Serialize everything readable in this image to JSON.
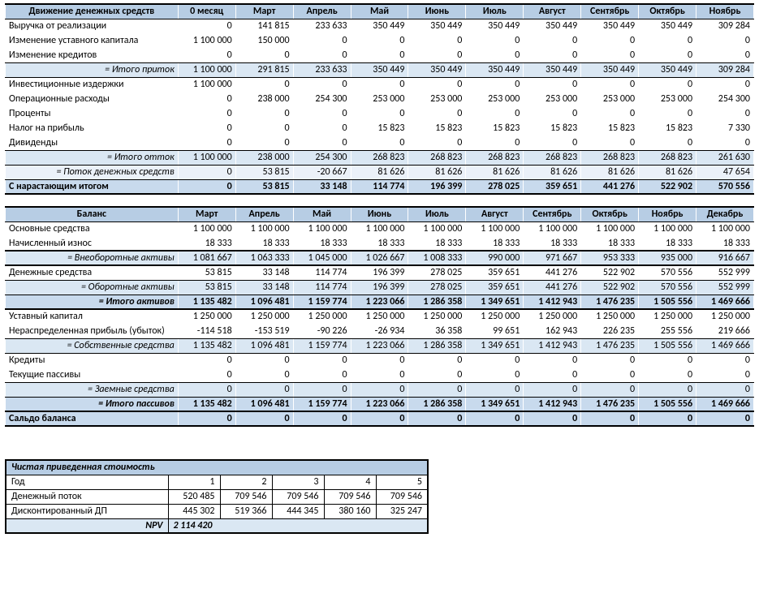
{
  "colors": {
    "header_fill": "#b7cde4",
    "sub1_fill": "#c8daed",
    "sub2_fill": "#dae7f3",
    "sub3_fill": "#ebf1f9",
    "border": "#000000",
    "text": "#000000",
    "background": "#ffffff"
  },
  "typography": {
    "font_family": "Calibri, Arial, sans-serif",
    "base_size_pt": 9,
    "header_weight": "bold"
  },
  "cashflow": {
    "title": "Движение денежных средств",
    "first_col_header": "0 месяц",
    "months": [
      "Март",
      "Апрель",
      "Май",
      "Июнь",
      "Июль",
      "Август",
      "Сентябрь",
      "Октябрь",
      "Ноябрь"
    ],
    "rows": [
      {
        "k": "r1",
        "label": "Выручка от реализации",
        "v": [
          "0",
          "141 815",
          "233 633",
          "350 449",
          "350 449",
          "350 449",
          "350 449",
          "350 449",
          "350 449",
          "309 284"
        ],
        "style": ""
      },
      {
        "k": "r2",
        "label": "Изменение уставного капитала",
        "v": [
          "1 100 000",
          "150 000",
          "0",
          "0",
          "0",
          "0",
          "0",
          "0",
          "0",
          "0"
        ],
        "style": ""
      },
      {
        "k": "r3",
        "label": "Изменение кредитов",
        "v": [
          "0",
          "0",
          "0",
          "0",
          "0",
          "0",
          "0",
          "0",
          "0",
          "0"
        ],
        "style": "thin-bot"
      },
      {
        "k": "r4",
        "label": "= Итого приток",
        "v": [
          "1 100 000",
          "291 815",
          "233 633",
          "350 449",
          "350 449",
          "350 449",
          "350 449",
          "350 449",
          "350 449",
          "309 284"
        ],
        "style": "italic-sub blue-2 thin-top thin-bot"
      },
      {
        "k": "r5",
        "label": "Инвестиционные издержки",
        "v": [
          "1 100 000",
          "0",
          "0",
          "0",
          "0",
          "0",
          "0",
          "0",
          "0",
          "0"
        ],
        "style": ""
      },
      {
        "k": "r6",
        "label": "Операционные расходы",
        "v": [
          "0",
          "238 000",
          "254 300",
          "253 000",
          "253 000",
          "253 000",
          "253 000",
          "253 000",
          "253 000",
          "254 300"
        ],
        "style": ""
      },
      {
        "k": "r7",
        "label": "Проценты",
        "v": [
          "0",
          "0",
          "0",
          "0",
          "0",
          "0",
          "0",
          "0",
          "0",
          "0"
        ],
        "style": ""
      },
      {
        "k": "r8",
        "label": "Налог на прибыль",
        "v": [
          "0",
          "0",
          "0",
          "15 823",
          "15 823",
          "15 823",
          "15 823",
          "15 823",
          "15 823",
          "7 330"
        ],
        "style": ""
      },
      {
        "k": "r9",
        "label": "Дивиденды",
        "v": [
          "0",
          "0",
          "0",
          "0",
          "0",
          "0",
          "0",
          "0",
          "0",
          "0"
        ],
        "style": "thin-bot"
      },
      {
        "k": "r10",
        "label": "= Итого отток",
        "v": [
          "1 100 000",
          "238 000",
          "254 300",
          "268 823",
          "268 823",
          "268 823",
          "268 823",
          "268 823",
          "268 823",
          "261 630"
        ],
        "style": "italic-sub blue-2 thin-top thin-bot"
      },
      {
        "k": "r11",
        "label": "= Поток денежных средств",
        "v": [
          "0",
          "53 815",
          "-20 667",
          "81 626",
          "81 626",
          "81 626",
          "81 626",
          "81 626",
          "81 626",
          "47 654"
        ],
        "style": "italic-sub blue-3 thin-top thin-bot"
      },
      {
        "k": "r12",
        "label": "С нарастающим итогом",
        "v": [
          "0",
          "53 815",
          "33 148",
          "114 774",
          "196 399",
          "278 025",
          "359 651",
          "441 276",
          "522 902",
          "570 556"
        ],
        "style": "bold-row blue-1 section-bot"
      }
    ]
  },
  "balance": {
    "title": "Баланс",
    "months": [
      "Март",
      "Апрель",
      "Май",
      "Июнь",
      "Июль",
      "Август",
      "Сентябрь",
      "Октябрь",
      "Ноябрь",
      "Декабрь"
    ],
    "rows": [
      {
        "k": "b1",
        "label": "Основные средства",
        "v": [
          "1 100 000",
          "1 100 000",
          "1 100 000",
          "1 100 000",
          "1 100 000",
          "1 100 000",
          "1 100 000",
          "1 100 000",
          "1 100 000",
          "1 100 000"
        ],
        "style": ""
      },
      {
        "k": "b2",
        "label": "Начисленный износ",
        "v": [
          "18 333",
          "18 333",
          "18 333",
          "18 333",
          "18 333",
          "18 333",
          "18 333",
          "18 333",
          "18 333",
          "18 333"
        ],
        "style": "thin-bot"
      },
      {
        "k": "b3",
        "label": "= Внеоборотные активы",
        "v": [
          "1 081 667",
          "1 063 333",
          "1 045 000",
          "1 026 667",
          "1 008 333",
          "990 000",
          "971 667",
          "953 333",
          "935 000",
          "916 667"
        ],
        "style": "italic-sub blue-2 section-top section-bot"
      },
      {
        "k": "b4",
        "label": "Денежные средства",
        "v": [
          "53 815",
          "33 148",
          "114 774",
          "196 399",
          "278 025",
          "359 651",
          "441 276",
          "522 902",
          "570 556",
          "552 999"
        ],
        "style": "thin-bot"
      },
      {
        "k": "b5",
        "label": "= Оборотные активы",
        "v": [
          "53 815",
          "33 148",
          "114 774",
          "196 399",
          "278 025",
          "359 651",
          "441 276",
          "522 902",
          "570 556",
          "552 999"
        ],
        "style": "italic-sub blue-2 thin-top thin-bot"
      },
      {
        "k": "b6",
        "label": "= Итого активов",
        "v": [
          "1 135 482",
          "1 096 481",
          "1 159 774",
          "1 223 066",
          "1 286 358",
          "1 349 651",
          "1 412 943",
          "1 476 235",
          "1 505 556",
          "1 469 666"
        ],
        "style": "italic-sub bold-row blue-1 thin-top section-bot"
      },
      {
        "k": "b7",
        "label": "Уставный капитал",
        "v": [
          "1 250 000",
          "1 250 000",
          "1 250 000",
          "1 250 000",
          "1 250 000",
          "1 250 000",
          "1 250 000",
          "1 250 000",
          "1 250 000",
          "1 250 000"
        ],
        "style": ""
      },
      {
        "k": "b8",
        "label": "Нераспределенная прибыль (убыток)",
        "v": [
          "-114 518",
          "-153 519",
          "-90 226",
          "-26 934",
          "36 358",
          "99 651",
          "162 943",
          "226 235",
          "255 556",
          "219 666"
        ],
        "style": "thin-bot"
      },
      {
        "k": "b9",
        "label": "= Собственные средства",
        "v": [
          "1 135 482",
          "1 096 481",
          "1 159 774",
          "1 223 066",
          "1 286 358",
          "1 349 651",
          "1 412 943",
          "1 476 235",
          "1 505 556",
          "1 469 666"
        ],
        "style": "italic-sub blue-2 thin-top thin-bot"
      },
      {
        "k": "b10",
        "label": "Кредиты",
        "v": [
          "0",
          "0",
          "0",
          "0",
          "0",
          "0",
          "0",
          "0",
          "0",
          "0"
        ],
        "style": ""
      },
      {
        "k": "b11",
        "label": "Текущие пассивы",
        "v": [
          "0",
          "0",
          "0",
          "0",
          "0",
          "0",
          "0",
          "0",
          "0",
          "0"
        ],
        "style": "thin-bot"
      },
      {
        "k": "b12",
        "label": "= Заемные средства",
        "v": [
          "0",
          "0",
          "0",
          "0",
          "0",
          "0",
          "0",
          "0",
          "0",
          "0"
        ],
        "style": "italic-sub blue-2 thin-top thin-bot"
      },
      {
        "k": "b13",
        "label": "= Итого пассивов",
        "v": [
          "1 135 482",
          "1 096 481",
          "1 159 774",
          "1 223 066",
          "1 286 358",
          "1 349 651",
          "1 412 943",
          "1 476 235",
          "1 505 556",
          "1 469 666"
        ],
        "style": "italic-sub bold-row blue-1 thin-top section-bot"
      },
      {
        "k": "b14",
        "label": "Сальдо баланса",
        "v": [
          "0",
          "0",
          "0",
          "0",
          "0",
          "0",
          "0",
          "0",
          "0",
          "0"
        ],
        "style": "bold-row blue-1 section-bot"
      }
    ]
  },
  "npv": {
    "title": "Чистая приведенная стоимость",
    "year_label": "Год",
    "years": [
      "1",
      "2",
      "3",
      "4",
      "5"
    ],
    "rows": [
      {
        "k": "n1",
        "label": "Денежный поток",
        "v": [
          "520 485",
          "709 546",
          "709 546",
          "709 546",
          "709 546"
        ]
      },
      {
        "k": "n2",
        "label": "Дисконтированный ДП",
        "v": [
          "445 302",
          "519 366",
          "444 345",
          "380 160",
          "325 247"
        ]
      }
    ],
    "npv_label": "NPV",
    "npv_value": "2 114 420"
  }
}
